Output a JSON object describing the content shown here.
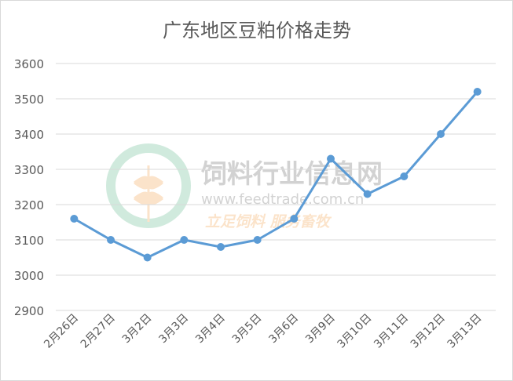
{
  "chart_data": {
    "type": "line",
    "title": "广东地区豆粕价格走势",
    "categories": [
      "2月26日",
      "2月27日",
      "3月2日",
      "3月3日",
      "3月4日",
      "3月5日",
      "3月6日",
      "3月9日",
      "3月10日",
      "3月11日",
      "3月12日",
      "3月13日"
    ],
    "values": [
      3160,
      3100,
      3050,
      3100,
      3080,
      3100,
      3160,
      3330,
      3230,
      3280,
      3400,
      3520
    ],
    "ylim": [
      2900,
      3600
    ],
    "yticks": [
      "2900",
      "3000",
      "3100",
      "3200",
      "3300",
      "3400",
      "3500",
      "3600"
    ],
    "xlabel": "",
    "ylabel": "",
    "grid": true,
    "legend": "none",
    "line_color": "#5b9bd5"
  },
  "watermark": {
    "name": "饲料行业信息网",
    "url": "www.feedtrade.com.cn",
    "slogan": "立足饲料  服务畜牧"
  }
}
